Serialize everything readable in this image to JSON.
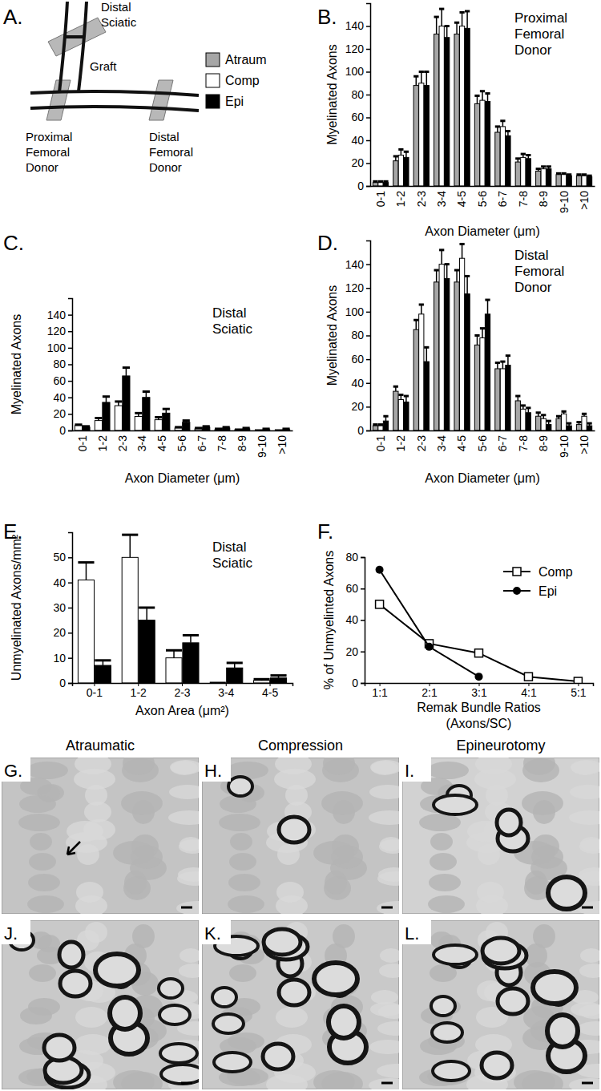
{
  "chart_data": [
    {
      "type": "bar",
      "panel_label": "B.",
      "title": "Proximal Femoral Donor",
      "x_label": "Axon Diameter (μm)",
      "y_label": "Myelinated Axons",
      "categories": [
        "0-1",
        "1-2",
        "2-3",
        "3-4",
        "4-5",
        "5-6",
        "6-7",
        "7-8",
        "8-9",
        "9-10",
        ">10"
      ],
      "series": [
        {
          "name": "Atraum",
          "color": "#a6a6a6",
          "values": [
            3,
            22,
            88,
            133,
            133,
            72,
            47,
            21,
            13,
            10,
            9
          ],
          "errors": [
            1,
            4,
            8,
            15,
            10,
            7,
            5,
            3,
            2,
            1,
            1
          ]
        },
        {
          "name": "Comp",
          "color": "#ffffff",
          "values": [
            3,
            27,
            90,
            140,
            140,
            75,
            52,
            25,
            15,
            10,
            9
          ],
          "errors": [
            1,
            5,
            10,
            15,
            12,
            8,
            5,
            3,
            2,
            1,
            1
          ]
        },
        {
          "name": "Epi",
          "color": "#000000",
          "values": [
            3,
            25,
            88,
            130,
            138,
            74,
            44,
            24,
            15,
            9,
            8
          ],
          "errors": [
            1,
            5,
            12,
            10,
            15,
            7,
            4,
            3,
            2,
            1,
            1
          ]
        }
      ],
      "ylim": [
        0,
        160
      ],
      "yticks": [
        0,
        20,
        40,
        60,
        80,
        100,
        120,
        140
      ],
      "legend": "left"
    },
    {
      "type": "bar",
      "panel_label": "C.",
      "title": "Distal Sciatic",
      "x_label": "Axon Diameter (μm)",
      "y_label": "Myelinated Axons",
      "categories": [
        "0-1",
        "1-2",
        "2-3",
        "3-4",
        "4-5",
        "5-6",
        "6-7",
        "7-8",
        "8-9",
        "9-10",
        ">10"
      ],
      "series": [
        {
          "name": "Comp",
          "color": "#ffffff",
          "values": [
            6,
            12,
            30,
            17,
            13,
            3,
            2,
            1,
            1,
            0,
            0
          ],
          "errors": [
            1,
            3,
            5,
            4,
            3,
            1,
            1,
            1,
            0,
            0,
            0
          ]
        },
        {
          "name": "Epi",
          "color": "#000000",
          "values": [
            4,
            34,
            66,
            40,
            21,
            10,
            4,
            3,
            2,
            1,
            1
          ],
          "errors": [
            1,
            7,
            10,
            7,
            5,
            2,
            1,
            1,
            1,
            1,
            1
          ]
        }
      ],
      "ylim": [
        0,
        160
      ],
      "yticks": [
        0,
        20,
        40,
        60,
        80,
        100,
        120,
        140
      ]
    },
    {
      "type": "bar",
      "panel_label": "D.",
      "title": "Distal Femoral Donor",
      "x_label": "Axon Diameter (μm)",
      "y_label": "Myelinated Axons",
      "categories": [
        "0-1",
        "1-2",
        "2-3",
        "3-4",
        "4-5",
        "5-6",
        "6-7",
        "7-8",
        "8-9",
        "9-10",
        ">10"
      ],
      "series": [
        {
          "name": "Atraum",
          "color": "#a6a6a6",
          "values": [
            4,
            33,
            85,
            125,
            125,
            72,
            52,
            25,
            12,
            10,
            5
          ],
          "errors": [
            1,
            4,
            8,
            10,
            10,
            8,
            5,
            4,
            3,
            2,
            2
          ]
        },
        {
          "name": "Comp",
          "color": "#ffffff",
          "values": [
            4,
            26,
            98,
            140,
            145,
            78,
            52,
            18,
            10,
            14,
            12
          ],
          "errors": [
            1,
            4,
            8,
            12,
            12,
            8,
            6,
            3,
            3,
            2,
            2
          ]
        },
        {
          "name": "Epi",
          "color": "#000000",
          "values": [
            8,
            24,
            58,
            128,
            115,
            98,
            55,
            15,
            5,
            4,
            4
          ],
          "errors": [
            4,
            5,
            12,
            12,
            15,
            12,
            8,
            4,
            3,
            2,
            2
          ]
        }
      ],
      "ylim": [
        0,
        160
      ],
      "yticks": [
        0,
        20,
        40,
        60,
        80,
        100,
        120,
        140
      ]
    },
    {
      "type": "bar",
      "panel_label": "E.",
      "title": "Distal Sciatic",
      "x_label": "Axon Area (μm²)",
      "y_label": "Unmyelinated Axons/mm²",
      "categories": [
        "0-1",
        "1-2",
        "2-3",
        "3-4",
        "4-5"
      ],
      "series": [
        {
          "name": "Comp",
          "color": "#ffffff",
          "values": [
            41,
            50,
            10,
            0,
            1
          ],
          "errors": [
            7,
            9,
            3,
            0,
            0.5
          ]
        },
        {
          "name": "Epi",
          "color": "#000000",
          "values": [
            7,
            25,
            16,
            6,
            2
          ],
          "errors": [
            2,
            5,
            3,
            2,
            1
          ]
        }
      ],
      "ylim": [
        0,
        60
      ],
      "yticks": [
        0,
        10,
        20,
        30,
        40,
        50
      ]
    },
    {
      "type": "line",
      "panel_label": "F.",
      "x_label": [
        "Remak Bundle Ratios",
        "(Axons/SC)"
      ],
      "y_label": "% of Unmyelinted Axons",
      "categories": [
        "1:1",
        "2:1",
        "3:1",
        "4:1",
        "5:1"
      ],
      "series": [
        {
          "name": "Comp",
          "color": "#000000",
          "marker": "square",
          "values": [
            50,
            25,
            19,
            4,
            1
          ]
        },
        {
          "name": "Epi",
          "color": "#000000",
          "marker": "circle",
          "values": [
            72,
            23,
            4,
            null,
            null
          ]
        }
      ],
      "ylim": [
        0,
        80
      ],
      "yticks": [
        0,
        20,
        40,
        60,
        80
      ],
      "legend": "right"
    }
  ],
  "diagram": {
    "panel_label": "A.",
    "labels": [
      "Distal Sciatic",
      "Graft",
      "Proximal Femoral Donor",
      "Distal Femoral Donor"
    ]
  },
  "micrographs": {
    "columns": [
      "Atraumatic",
      "Compression",
      "Epineurotomy"
    ],
    "panel_labels": [
      "G.",
      "H.",
      "I.",
      "J.",
      "K.",
      "L."
    ]
  }
}
